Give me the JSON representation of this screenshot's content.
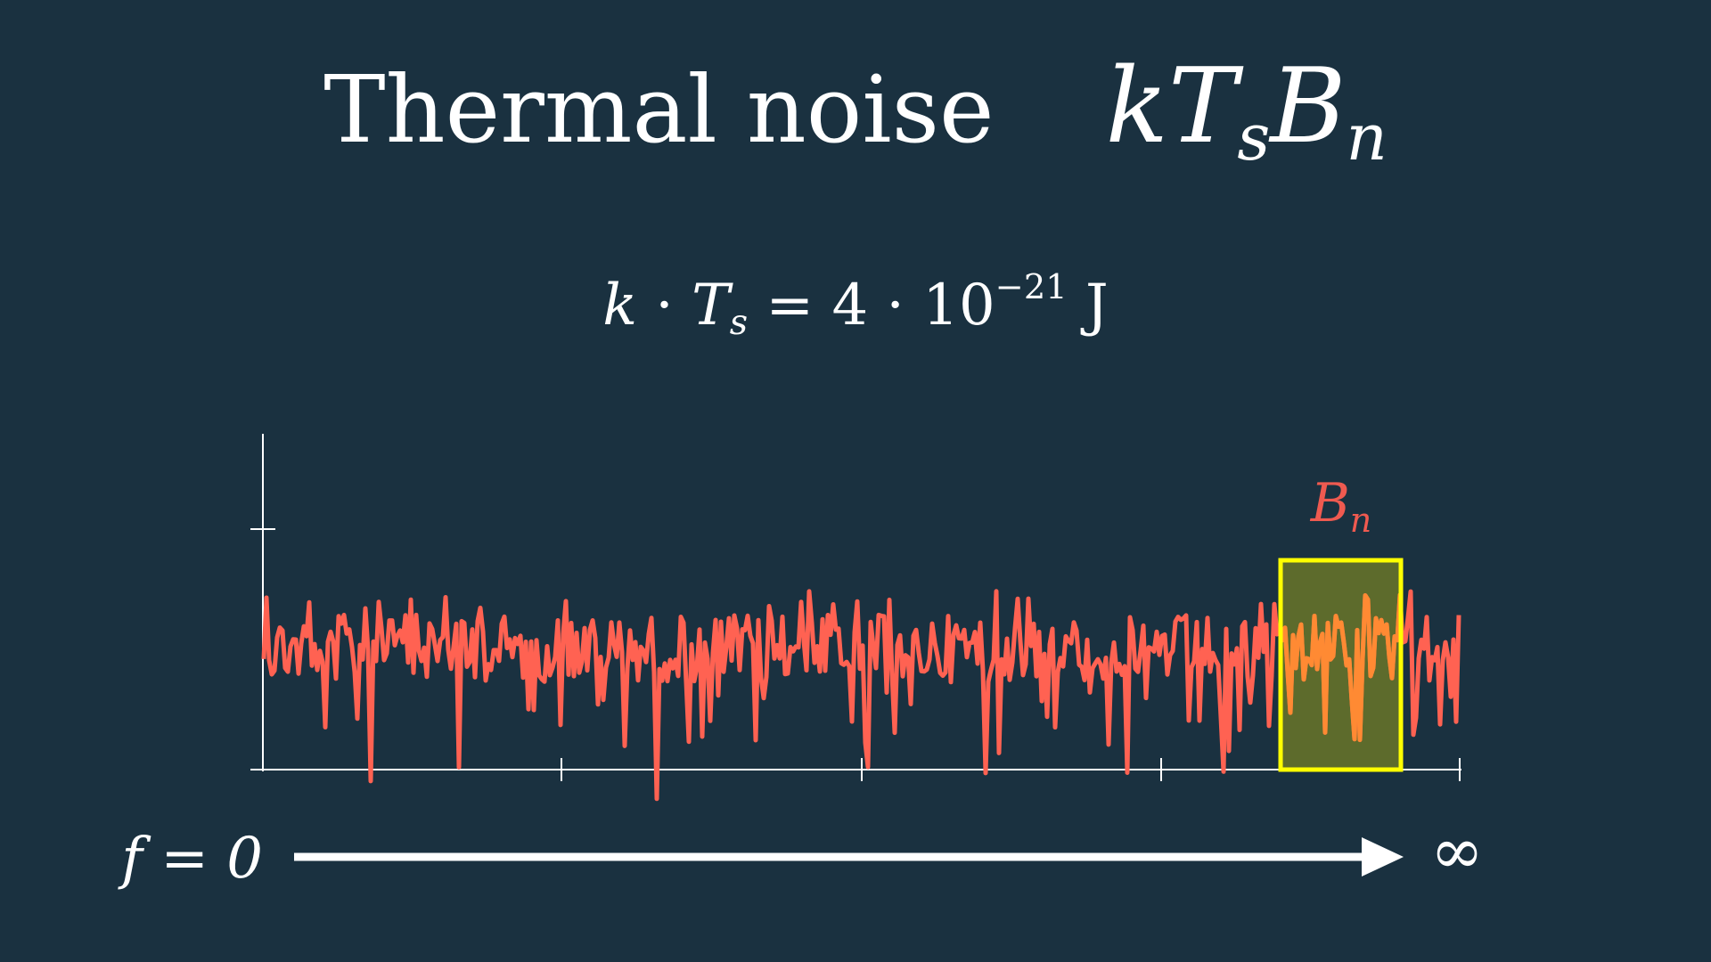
{
  "colors": {
    "background": "#1a3140",
    "accent": "#ef5a50",
    "noise": "#ff6252",
    "band_outline": "#ffff00",
    "band_fill": "#5d6b2c",
    "band_noise": "#ff8a33",
    "white": "#ffffff"
  },
  "title": {
    "text": "Thermal noise",
    "formula_k": "k",
    "formula_T": "T",
    "formula_s": "s",
    "formula_B": "B",
    "formula_n": "n"
  },
  "equation": {
    "k": "k",
    "dot1": "·",
    "T": "T",
    "s": "s",
    "equals": "=",
    "four": "4",
    "dot2": "·",
    "ten": "10",
    "exponent": "−21",
    "unit": "J"
  },
  "band_label": {
    "B": "B",
    "n": "n"
  },
  "frequency_axis": {
    "start_label": "f = 0",
    "end_label": "∞"
  }
}
